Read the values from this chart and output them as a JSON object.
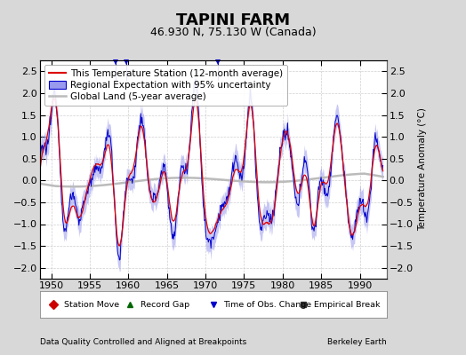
{
  "title": "TAPINI FARM",
  "subtitle": "46.930 N, 75.130 W (Canada)",
  "footer_left": "Data Quality Controlled and Aligned at Breakpoints",
  "footer_right": "Berkeley Earth",
  "ylabel": "Temperature Anomaly (°C)",
  "xlim": [
    1948.5,
    1993.5
  ],
  "ylim": [
    -2.25,
    2.75
  ],
  "yticks": [
    -2,
    -1.5,
    -1,
    -0.5,
    0,
    0.5,
    1,
    1.5,
    2,
    2.5
  ],
  "xticks": [
    1950,
    1955,
    1960,
    1965,
    1970,
    1975,
    1980,
    1985,
    1990
  ],
  "color_station": "#dd0000",
  "color_regional": "#0000cc",
  "color_uncertainty": "#9999ee",
  "color_global": "#bbbbbb",
  "background_color": "#d8d8d8",
  "plot_bg_color": "#ffffff",
  "grid_color": "#bbbbbb",
  "title_fontsize": 13,
  "subtitle_fontsize": 9,
  "axis_label_fontsize": 7.5,
  "tick_fontsize": 8,
  "legend_fontsize": 7.5
}
